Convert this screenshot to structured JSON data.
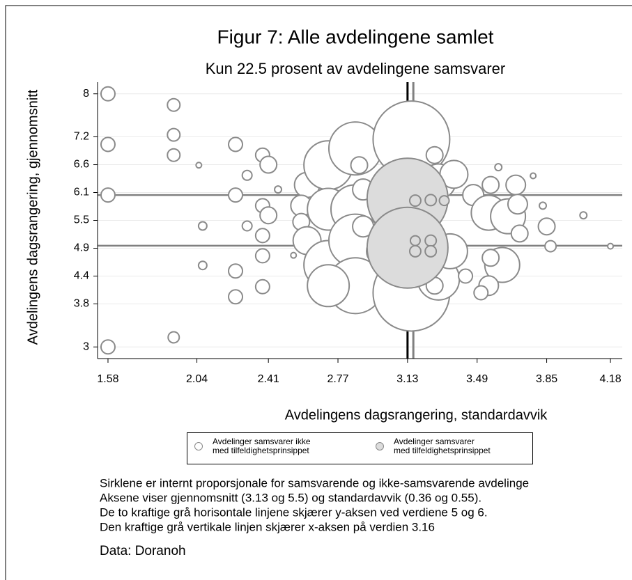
{
  "chart_data": {
    "type": "scatter",
    "title": "Figur 7: Alle avdelingene samlet",
    "subtitle": "Kun 22.5 prosent av avdelingene samsvarer",
    "x_label": "Avdelingens dagsrangering, standardavvik",
    "y_label": "Avdelingens dagsrangering, gjennomsnitt",
    "xlim": [
      1.526,
      4.241
    ],
    "ylim": [
      2.77,
      8.23
    ],
    "xticks": [
      1.58,
      2.04,
      2.41,
      2.77,
      3.13,
      3.49,
      3.85,
      4.18
    ],
    "yticks": [
      3,
      {
        "value": 3.85,
        "label": "3.8"
      },
      4.4,
      {
        "value": 4.95,
        "label": "4.9"
      },
      5.5,
      {
        "value": 6.05,
        "label": "6.1"
      },
      6.6,
      {
        "value": 7.15,
        "label": "7.2"
      },
      8
    ],
    "grid": true,
    "hlines": [
      5,
      6
    ],
    "vlines": [
      3.13,
      3.16
    ],
    "series": [
      {
        "name": "Avdelinger samsvarer ikke\nmed tilfeldighetsprinsippet",
        "color": "#ffffff",
        "x": [
          1.58,
          1.58,
          1.58,
          1.58,
          1.92,
          1.92,
          1.92,
          1.92,
          2.05,
          2.07,
          2.07,
          2.24,
          2.24,
          2.24,
          2.24,
          2.3,
          2.3,
          2.38,
          2.41,
          2.38,
          2.41,
          2.38,
          2.38,
          2.38,
          2.46,
          2.61,
          2.58,
          2.58,
          2.61,
          2.72,
          2.72,
          2.72,
          2.86,
          2.86,
          2.86,
          2.86,
          2.72,
          2.9,
          2.9,
          2.88,
          2.99,
          3.15,
          3.15,
          3.29,
          3.29,
          3.27,
          3.27,
          3.37,
          3.35,
          3.47,
          3.55,
          3.62,
          3.65,
          3.56,
          3.69,
          3.7,
          3.56,
          3.55,
          3.51,
          3.6,
          3.78,
          3.71,
          3.83,
          3.85,
          3.87,
          4.04,
          4.18,
          3.43,
          2.54
        ],
        "y": [
          8.0,
          7.0,
          6.0,
          3.0,
          7.78,
          7.19,
          6.79,
          3.19,
          6.59,
          5.39,
          4.61,
          7.0,
          6.0,
          4.5,
          3.99,
          6.39,
          5.39,
          6.79,
          6.6,
          5.79,
          5.6,
          5.2,
          4.8,
          4.19,
          6.11,
          6.2,
          5.79,
          5.47,
          5.1,
          6.59,
          5.72,
          4.62,
          6.92,
          5.72,
          5.1,
          4.21,
          4.21,
          6.11,
          5.38,
          6.59,
          4.89,
          7.1,
          4.07,
          6.27,
          4.34,
          6.79,
          4.21,
          6.41,
          4.89,
          6.0,
          5.65,
          4.62,
          5.58,
          6.2,
          6.2,
          5.82,
          4.76,
          4.21,
          4.07,
          6.55,
          6.38,
          5.24,
          5.79,
          5.38,
          4.99,
          5.6,
          4.99,
          4.4,
          4.81
        ],
        "size": [
          2.37,
          2.37,
          2.37,
          2.37,
          1.92,
          1.92,
          1.92,
          1.51,
          0.38,
          0.85,
          0.85,
          2.37,
          2.37,
          2.37,
          2.37,
          1.16,
          1.16,
          2.37,
          3.41,
          2.37,
          3.41,
          2.37,
          2.37,
          2.37,
          0.59,
          7.67,
          5.33,
          3.41,
          9.47,
          29,
          21.3,
          29,
          34.2,
          29,
          34.2,
          37.9,
          21.3,
          5.33,
          5.33,
          3.41,
          9.47,
          71.6,
          71.6,
          14.79,
          21.3,
          3.41,
          3.41,
          9.47,
          14.79,
          5.33,
          14.79,
          14.79,
          14.79,
          3.41,
          4.64,
          4.64,
          3.41,
          4.64,
          2.37,
          0.59,
          0.38,
          3.41,
          0.59,
          3.41,
          1.51,
          0.59,
          0.38,
          2.37,
          0.38
        ]
      },
      {
        "name": "Avdelinger samsvarer\nmed tilfeldighetsprinsippet",
        "color": "#dcdcdc",
        "x": [
          3.13,
          3.13,
          3.17,
          3.25,
          3.32,
          3.17,
          3.17,
          3.25,
          3.25
        ],
        "y": [
          5.93,
          4.96,
          5.89,
          5.9,
          5.89,
          5.1,
          4.89,
          5.1,
          4.89
        ],
        "size": [
          79.6,
          79.6,
          1.51,
          1.51,
          1.16,
          1.16,
          1.51,
          1.51,
          1.51
        ]
      }
    ],
    "notes": [
      "Sirklene er internt proporsjonale for samsvarende og ikke-samsvarende avdelinge",
      "Aksene viser gjennomsnitt (3.13 og 5.5) og standardavvik (0.36 og 0.55).",
      "De to kraftige grå horisontale linjene skjærer y-aksen ved verdiene 5 og 6.",
      "Den kraftige grå vertikale linjen skjærer x-aksen på verdien 3.16"
    ],
    "source": "Data: Doranoh"
  }
}
